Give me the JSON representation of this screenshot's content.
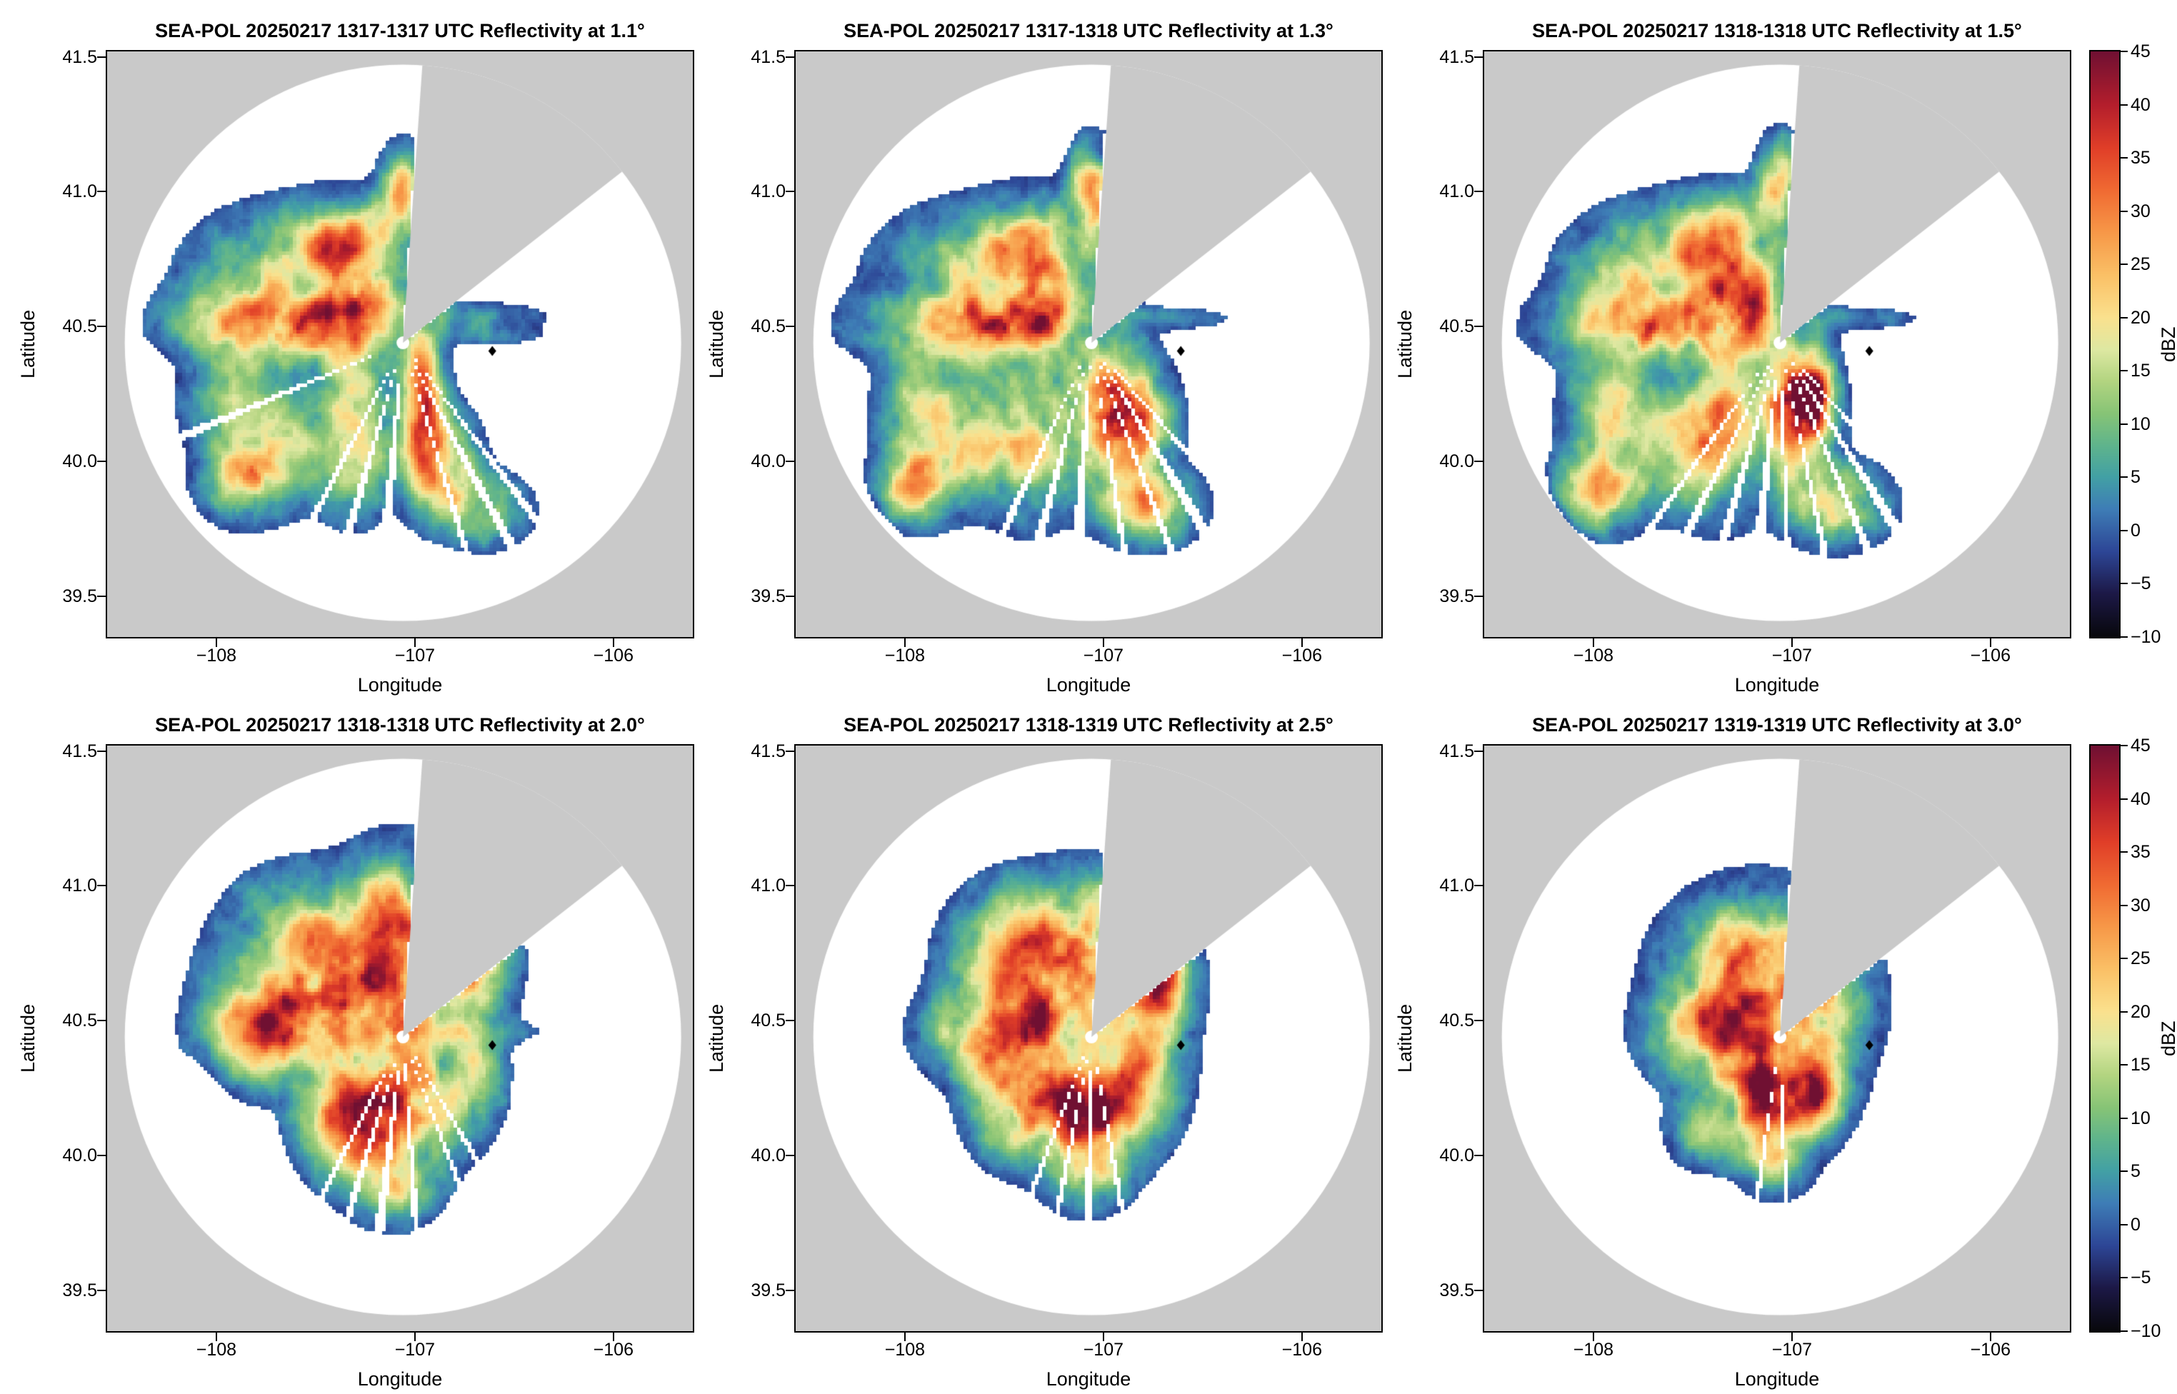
{
  "chart_data": {
    "type": "heatmap",
    "description": "Six-panel PPI radar reflectivity maps (SEA-POL radar, 2025-02-17) at successive elevation angles, lat/lon coordinates, shared dBZ colorbar per row",
    "panels": [
      {
        "title": "SEA-POL 20250217 1317-1317 UTC Reflectivity at 1.1°",
        "time_utc": "1317-1317",
        "elevation_deg": 1.1,
        "seed": 11,
        "maxr": 1.02,
        "lobes": [
          [
            0.0,
            0.56,
            0.07,
            0.1,
            22
          ],
          [
            -0.25,
            0.38,
            0.16,
            0.1,
            18
          ],
          [
            -0.52,
            0.24,
            0.3,
            0.15,
            24
          ],
          [
            -0.5,
            0.2,
            0.09,
            0.06,
            -17
          ],
          [
            -0.62,
            0.07,
            0.3,
            0.08,
            30
          ],
          [
            -0.2,
            0.12,
            0.12,
            0.1,
            20
          ],
          [
            -0.85,
            -0.22,
            0.15,
            0.12,
            16
          ],
          [
            -0.82,
            -0.5,
            0.12,
            0.09,
            26
          ],
          [
            -0.6,
            -0.38,
            0.15,
            0.14,
            14
          ],
          [
            -0.24,
            -0.28,
            0.13,
            0.2,
            22
          ],
          [
            0.1,
            -0.22,
            0.07,
            0.18,
            30
          ],
          [
            0.2,
            -0.45,
            0.11,
            0.12,
            26
          ],
          [
            0.42,
            -0.62,
            0.13,
            0.08,
            17
          ],
          [
            0.38,
            0.1,
            0.24,
            0.035,
            6
          ],
          [
            0.45,
            0.03,
            0.18,
            0.028,
            5
          ]
        ],
        "gaps": [
          [
            143,
            1.0
          ],
          [
            152,
            1.2
          ],
          [
            163,
            0.8
          ],
          [
            185,
            1.5
          ],
          [
            196,
            1.2
          ],
          [
            207,
            1.0
          ],
          [
            247,
            1.0
          ]
        ]
      },
      {
        "title": "SEA-POL 20250217 1317-1318 UTC Reflectivity at 1.3°",
        "time_utc": "1317-1318",
        "elevation_deg": 1.3,
        "seed": 22,
        "maxr": 1.02,
        "lobes": [
          [
            0.0,
            0.57,
            0.07,
            0.11,
            22
          ],
          [
            -0.25,
            0.37,
            0.17,
            0.11,
            19
          ],
          [
            -0.52,
            0.24,
            0.3,
            0.15,
            24
          ],
          [
            -0.48,
            0.2,
            0.08,
            0.05,
            -14
          ],
          [
            -0.62,
            0.06,
            0.3,
            0.08,
            29
          ],
          [
            -0.2,
            0.12,
            0.12,
            0.1,
            20
          ],
          [
            -0.85,
            -0.25,
            0.14,
            0.12,
            16
          ],
          [
            -0.88,
            -0.52,
            0.12,
            0.09,
            28
          ],
          [
            -0.58,
            -0.38,
            0.15,
            0.14,
            15
          ],
          [
            -0.3,
            -0.3,
            0.14,
            0.2,
            22
          ],
          [
            0.05,
            -0.25,
            0.12,
            0.18,
            30
          ],
          [
            0.22,
            -0.3,
            0.12,
            0.14,
            28
          ],
          [
            0.3,
            -0.6,
            0.15,
            0.09,
            20
          ],
          [
            0.4,
            0.09,
            0.22,
            0.03,
            5
          ]
        ],
        "gaps": [
          [
            139,
            1.0
          ],
          [
            149,
            1.4
          ],
          [
            159,
            0.9
          ],
          [
            171,
            0.8
          ],
          [
            184,
            1.5
          ],
          [
            195,
            1.2
          ],
          [
            205,
            1.0
          ]
        ]
      },
      {
        "title": "SEA-POL 20250217 1318-1318 UTC Reflectivity at 1.5°",
        "time_utc": "1318-1318",
        "elevation_deg": 1.5,
        "seed": 33,
        "maxr": 1.03,
        "lobes": [
          [
            0.0,
            0.58,
            0.07,
            0.11,
            22
          ],
          [
            -0.26,
            0.38,
            0.17,
            0.11,
            19
          ],
          [
            -0.52,
            0.25,
            0.3,
            0.15,
            25
          ],
          [
            -0.48,
            0.21,
            0.08,
            0.05,
            -14
          ],
          [
            -0.63,
            0.06,
            0.3,
            0.08,
            30
          ],
          [
            -0.2,
            0.12,
            0.12,
            0.1,
            21
          ],
          [
            -0.86,
            -0.25,
            0.14,
            0.12,
            17
          ],
          [
            -0.9,
            -0.54,
            0.13,
            0.09,
            32
          ],
          [
            -0.58,
            -0.38,
            0.15,
            0.14,
            15
          ],
          [
            -0.3,
            -0.3,
            0.14,
            0.2,
            23
          ],
          [
            0.06,
            -0.26,
            0.12,
            0.18,
            32
          ],
          [
            0.14,
            -0.22,
            0.08,
            0.1,
            36
          ],
          [
            0.3,
            -0.6,
            0.15,
            0.09,
            22
          ],
          [
            0.4,
            0.09,
            0.22,
            0.03,
            5
          ]
        ],
        "gaps": [
          [
            139,
            1.0
          ],
          [
            148,
            1.3
          ],
          [
            157,
            1.0
          ],
          [
            168,
            0.8
          ],
          [
            178,
            0.8
          ],
          [
            186,
            1.4
          ],
          [
            196,
            1.2
          ],
          [
            206,
            1.0
          ],
          [
            215,
            0.8
          ]
        ]
      },
      {
        "title": "SEA-POL 20250217 1318-1318 UTC Reflectivity at 2.0°",
        "time_utc": "1318-1318",
        "elevation_deg": 2.0,
        "seed": 44,
        "maxr": 0.88,
        "lobes": [
          [
            -0.45,
            0.28,
            0.28,
            0.18,
            26
          ],
          [
            -0.02,
            0.45,
            0.16,
            0.16,
            20
          ],
          [
            0.33,
            0.27,
            0.13,
            0.13,
            30
          ],
          [
            -0.55,
            0.05,
            0.28,
            0.09,
            26
          ],
          [
            -0.15,
            0.1,
            0.25,
            0.2,
            18
          ],
          [
            0.02,
            -0.25,
            0.17,
            0.15,
            34
          ],
          [
            -0.28,
            -0.3,
            0.15,
            0.14,
            26
          ],
          [
            0.35,
            -0.15,
            0.1,
            0.13,
            14
          ],
          [
            -0.05,
            -0.55,
            0.13,
            0.09,
            17
          ],
          [
            0.3,
            0.02,
            0.24,
            0.03,
            7
          ],
          [
            -0.75,
            -0.05,
            0.1,
            0.1,
            14
          ]
        ],
        "gaps": [
          [
            149,
            1.1
          ],
          [
            159,
            0.9
          ],
          [
            176,
            1.0
          ],
          [
            187,
            1.4
          ],
          [
            197,
            1.1
          ],
          [
            207,
            0.9
          ]
        ]
      },
      {
        "title": "SEA-POL 20250217 1318-1319 UTC Reflectivity at 2.5°",
        "time_utc": "1318-1319",
        "elevation_deg": 2.5,
        "seed": 55,
        "maxr": 0.78,
        "lobes": [
          [
            -0.35,
            0.3,
            0.2,
            0.15,
            27
          ],
          [
            -0.02,
            0.37,
            0.15,
            0.14,
            21
          ],
          [
            0.32,
            0.22,
            0.11,
            0.11,
            30
          ],
          [
            -0.5,
            0.02,
            0.2,
            0.1,
            23
          ],
          [
            -0.1,
            0.05,
            0.3,
            0.25,
            19
          ],
          [
            0.0,
            -0.27,
            0.19,
            0.13,
            32
          ],
          [
            -0.38,
            -0.25,
            0.13,
            0.12,
            25
          ],
          [
            -0.02,
            -0.52,
            0.12,
            0.08,
            15
          ],
          [
            0.3,
            -0.1,
            0.1,
            0.12,
            14
          ]
        ],
        "gaps": [
          [
            170,
            0.9
          ],
          [
            181,
            1.1
          ],
          [
            191,
            0.9
          ],
          [
            201,
            0.8
          ]
        ]
      },
      {
        "title": "SEA-POL 20250217 1319-1319 UTC Reflectivity at 3.0°",
        "time_utc": "1319-1319",
        "elevation_deg": 3.0,
        "seed": 66,
        "maxr": 0.68,
        "lobes": [
          [
            -0.2,
            0.25,
            0.22,
            0.15,
            22
          ],
          [
            -0.05,
            0.1,
            0.28,
            0.24,
            19
          ],
          [
            0.25,
            0.15,
            0.12,
            0.12,
            16
          ],
          [
            -0.45,
            0.02,
            0.15,
            0.1,
            18
          ],
          [
            -0.05,
            -0.22,
            0.17,
            0.13,
            28
          ],
          [
            0.15,
            -0.18,
            0.1,
            0.1,
            24
          ],
          [
            -0.4,
            -0.35,
            0.1,
            0.08,
            12
          ],
          [
            -0.02,
            -0.48,
            0.1,
            0.07,
            12
          ]
        ],
        "gaps": [
          [
            178,
            0.8
          ],
          [
            188,
            0.9
          ]
        ]
      }
    ],
    "axes": {
      "xlabel": "Longitude",
      "ylabel": "Latitude",
      "xlim": [
        -108.55,
        -105.6
      ],
      "ylim": [
        39.35,
        41.52
      ],
      "xticks": [
        {
          "v": -108,
          "label": "−108"
        },
        {
          "v": -107,
          "label": "−107"
        },
        {
          "v": -106,
          "label": "−106"
        }
      ],
      "yticks": [
        {
          "v": 41.5,
          "label": "41.5"
        },
        {
          "v": 41.0,
          "label": "41.0"
        },
        {
          "v": 40.5,
          "label": "40.5"
        },
        {
          "v": 40.0,
          "label": "40.0"
        },
        {
          "v": 39.5,
          "label": "39.5"
        }
      ]
    },
    "colorbar": {
      "label": "dBZ",
      "min": -10,
      "max": 45,
      "ticks": [
        {
          "v": 45,
          "label": "45"
        },
        {
          "v": 40,
          "label": "40"
        },
        {
          "v": 35,
          "label": "35"
        },
        {
          "v": 30,
          "label": "30"
        },
        {
          "v": 25,
          "label": "25"
        },
        {
          "v": 20,
          "label": "20"
        },
        {
          "v": 15,
          "label": "15"
        },
        {
          "v": 10,
          "label": "10"
        },
        {
          "v": 5,
          "label": "5"
        },
        {
          "v": 0,
          "label": "0"
        },
        {
          "v": -5,
          "label": "−5"
        },
        {
          "v": -10,
          "label": "−10"
        }
      ],
      "stops": [
        [
          -10,
          8,
          8,
          12
        ],
        [
          -6,
          28,
          24,
          70
        ],
        [
          -2,
          45,
          70,
          150
        ],
        [
          2,
          62,
          125,
          182
        ],
        [
          5,
          66,
          160,
          165
        ],
        [
          8,
          95,
          180,
          140
        ],
        [
          11,
          135,
          196,
          118
        ],
        [
          14,
          178,
          212,
          128
        ],
        [
          17,
          222,
          232,
          162
        ],
        [
          20,
          250,
          225,
          142
        ],
        [
          24,
          250,
          192,
          102
        ],
        [
          28,
          247,
          152,
          72
        ],
        [
          32,
          240,
          106,
          50
        ],
        [
          36,
          224,
          62,
          40
        ],
        [
          40,
          180,
          30,
          44
        ],
        [
          45,
          112,
          16,
          50
        ]
      ]
    },
    "radar": {
      "center_lon": -107.06,
      "center_lat": 40.44,
      "radius_frac": 0.475,
      "blocked_sector_deg": [
        4,
        52
      ],
      "outside_color": "#c9c9c9",
      "inside_color": "#ffffff",
      "marker": {
        "lon": -106.61,
        "lat": 40.41,
        "shape": "diamond",
        "color": "#000000"
      }
    },
    "render": {
      "cell": 5,
      "noise_scale": 6
    }
  }
}
